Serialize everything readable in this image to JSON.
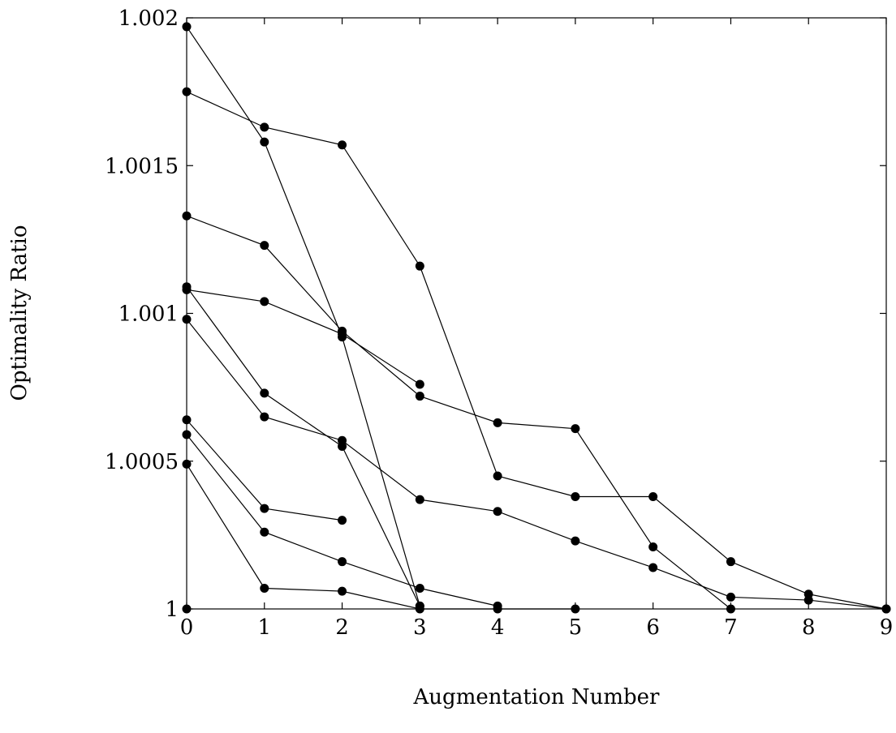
{
  "chart_data": {
    "type": "line",
    "title": "",
    "xlabel": "Augmentation Number",
    "ylabel": "Optimality Ratio",
    "xlim": [
      0,
      9
    ],
    "ylim": [
      1,
      1.002
    ],
    "x_ticks": [
      0,
      1,
      2,
      3,
      4,
      5,
      6,
      7,
      8,
      9
    ],
    "x_tick_labels": [
      "0",
      "1",
      "2",
      "3",
      "4",
      "5",
      "6",
      "7",
      "8",
      "9"
    ],
    "y_ticks": [
      1,
      1.0005,
      1.001,
      1.0015,
      1.002
    ],
    "y_tick_labels": [
      "1",
      "1.0005",
      "1.001",
      "1.0015",
      "1.002"
    ],
    "grid": false,
    "legend": "none",
    "series": [
      {
        "x": [
          0,
          1,
          2,
          3,
          4,
          5,
          6,
          7,
          8,
          9
        ],
        "y": [
          1.00175,
          1.00163,
          1.00157,
          1.00116,
          1.00045,
          1.00038,
          1.00038,
          1.00016,
          1.00005,
          1.0
        ]
      },
      {
        "x": [
          0,
          1,
          2,
          3
        ],
        "y": [
          1.00197,
          1.00158,
          1.00092,
          1.00001
        ]
      },
      {
        "x": [
          0,
          1,
          2,
          3,
          4,
          5,
          6,
          7
        ],
        "y": [
          1.00133,
          1.00123,
          1.00094,
          1.00072,
          1.00063,
          1.00061,
          1.00021,
          1.0
        ]
      },
      {
        "x": [
          0,
          1,
          2,
          3
        ],
        "y": [
          1.00108,
          1.00104,
          1.00093,
          1.00076
        ]
      },
      {
        "x": [
          0,
          1,
          2,
          3
        ],
        "y": [
          1.00109,
          1.00073,
          1.00055,
          1.00001
        ]
      },
      {
        "x": [
          0,
          1,
          2,
          3,
          4,
          5,
          6,
          7,
          8,
          9
        ],
        "y": [
          1.00098,
          1.00065,
          1.00057,
          1.00037,
          1.00033,
          1.00023,
          1.00014,
          1.00004,
          1.00003,
          1.0
        ]
      },
      {
        "x": [
          0,
          1,
          2
        ],
        "y": [
          1.00064,
          1.00034,
          1.0003
        ]
      },
      {
        "x": [
          0,
          1,
          2,
          3,
          4
        ],
        "y": [
          1.00059,
          1.00026,
          1.00016,
          1.00007,
          1.00001
        ]
      },
      {
        "x": [
          0,
          1,
          2,
          3,
          4,
          5
        ],
        "y": [
          1.00049,
          1.00007,
          1.00006,
          1.0,
          1.0,
          1.0
        ]
      },
      {
        "x": [
          0
        ],
        "y": [
          1.0
        ]
      }
    ]
  }
}
